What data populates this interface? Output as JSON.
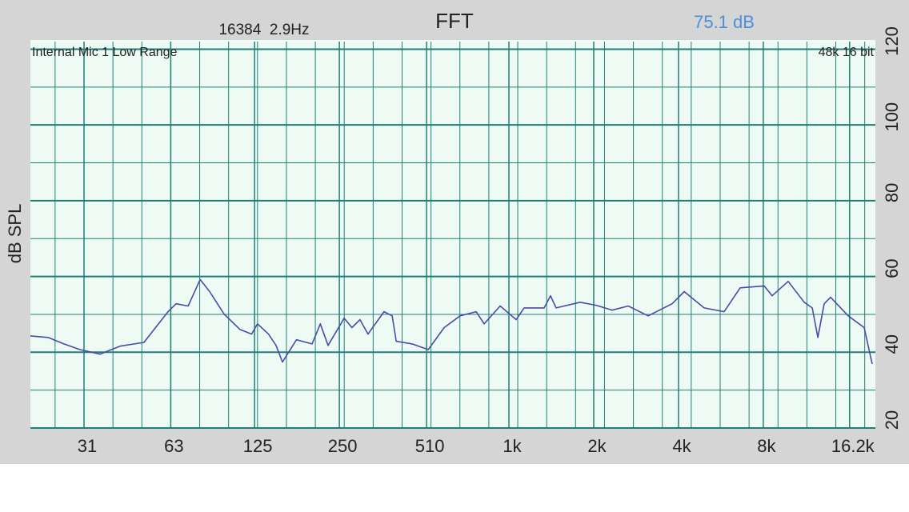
{
  "chart_data": {
    "type": "line",
    "title": "FFT",
    "fft_info": "16384  2.9Hz",
    "level": "75.1 dB",
    "input_label": "Internal Mic 1 Low Range",
    "format_label": "48k 16 bit",
    "ylabel": "dB SPL",
    "xscale": "log",
    "xlim": [
      20,
      20000
    ],
    "xticks": [
      31,
      63,
      125,
      250,
      510,
      {
        "value": 1000,
        "label": "1k"
      },
      {
        "value": 2000,
        "label": "2k"
      },
      {
        "value": 4000,
        "label": "4k"
      },
      {
        "value": 8000,
        "label": "8k"
      },
      {
        "value": 16200,
        "label": "16.2k"
      }
    ],
    "ylim": [
      20,
      122
    ],
    "yticks": [
      20,
      40,
      60,
      80,
      100,
      120
    ],
    "minor_yticks": [
      30,
      50,
      70,
      90,
      110
    ],
    "grid": true,
    "color": "#4a4aa8",
    "x": [
      20,
      23.1,
      26.3,
      30.0,
      35.3,
      41.6,
      50.6,
      61.6,
      65.8,
      72.6,
      80.1,
      86.6,
      97.4,
      111,
      122,
      128,
      140,
      149,
      157,
      176,
      200,
      214,
      228,
      260,
      277,
      296,
      316,
      360,
      385,
      398,
      453,
      517,
      589,
      671,
      765,
      816,
      931,
      1061,
      1132,
      1333,
      1405,
      1471,
      1789,
      2039,
      2325,
      2651,
      3121,
      3797,
      4190,
      4933,
      5809,
      6621,
      8056,
      8601,
      9804,
      11176,
      11933,
      12492,
      13162,
      13868,
      16015,
      18252,
      19488
    ],
    "values": [
      44.3,
      43.9,
      42.2,
      40.7,
      39.5,
      41.6,
      42.6,
      50.7,
      52.8,
      52.2,
      59.2,
      56.0,
      50.1,
      46.0,
      44.8,
      47.5,
      44.8,
      41.8,
      37.4,
      43.3,
      42.2,
      47.5,
      41.8,
      49.0,
      46.5,
      48.6,
      44.8,
      50.7,
      49.6,
      42.9,
      42.2,
      40.7,
      46.5,
      49.6,
      50.7,
      47.5,
      52.2,
      48.6,
      51.7,
      51.7,
      54.9,
      51.7,
      53.2,
      52.4,
      51.1,
      52.2,
      49.6,
      52.8,
      56.0,
      51.7,
      50.7,
      57.0,
      57.5,
      54.9,
      58.7,
      53.2,
      51.7,
      43.9,
      52.8,
      54.5,
      49.6,
      46.5,
      36.9
    ]
  }
}
